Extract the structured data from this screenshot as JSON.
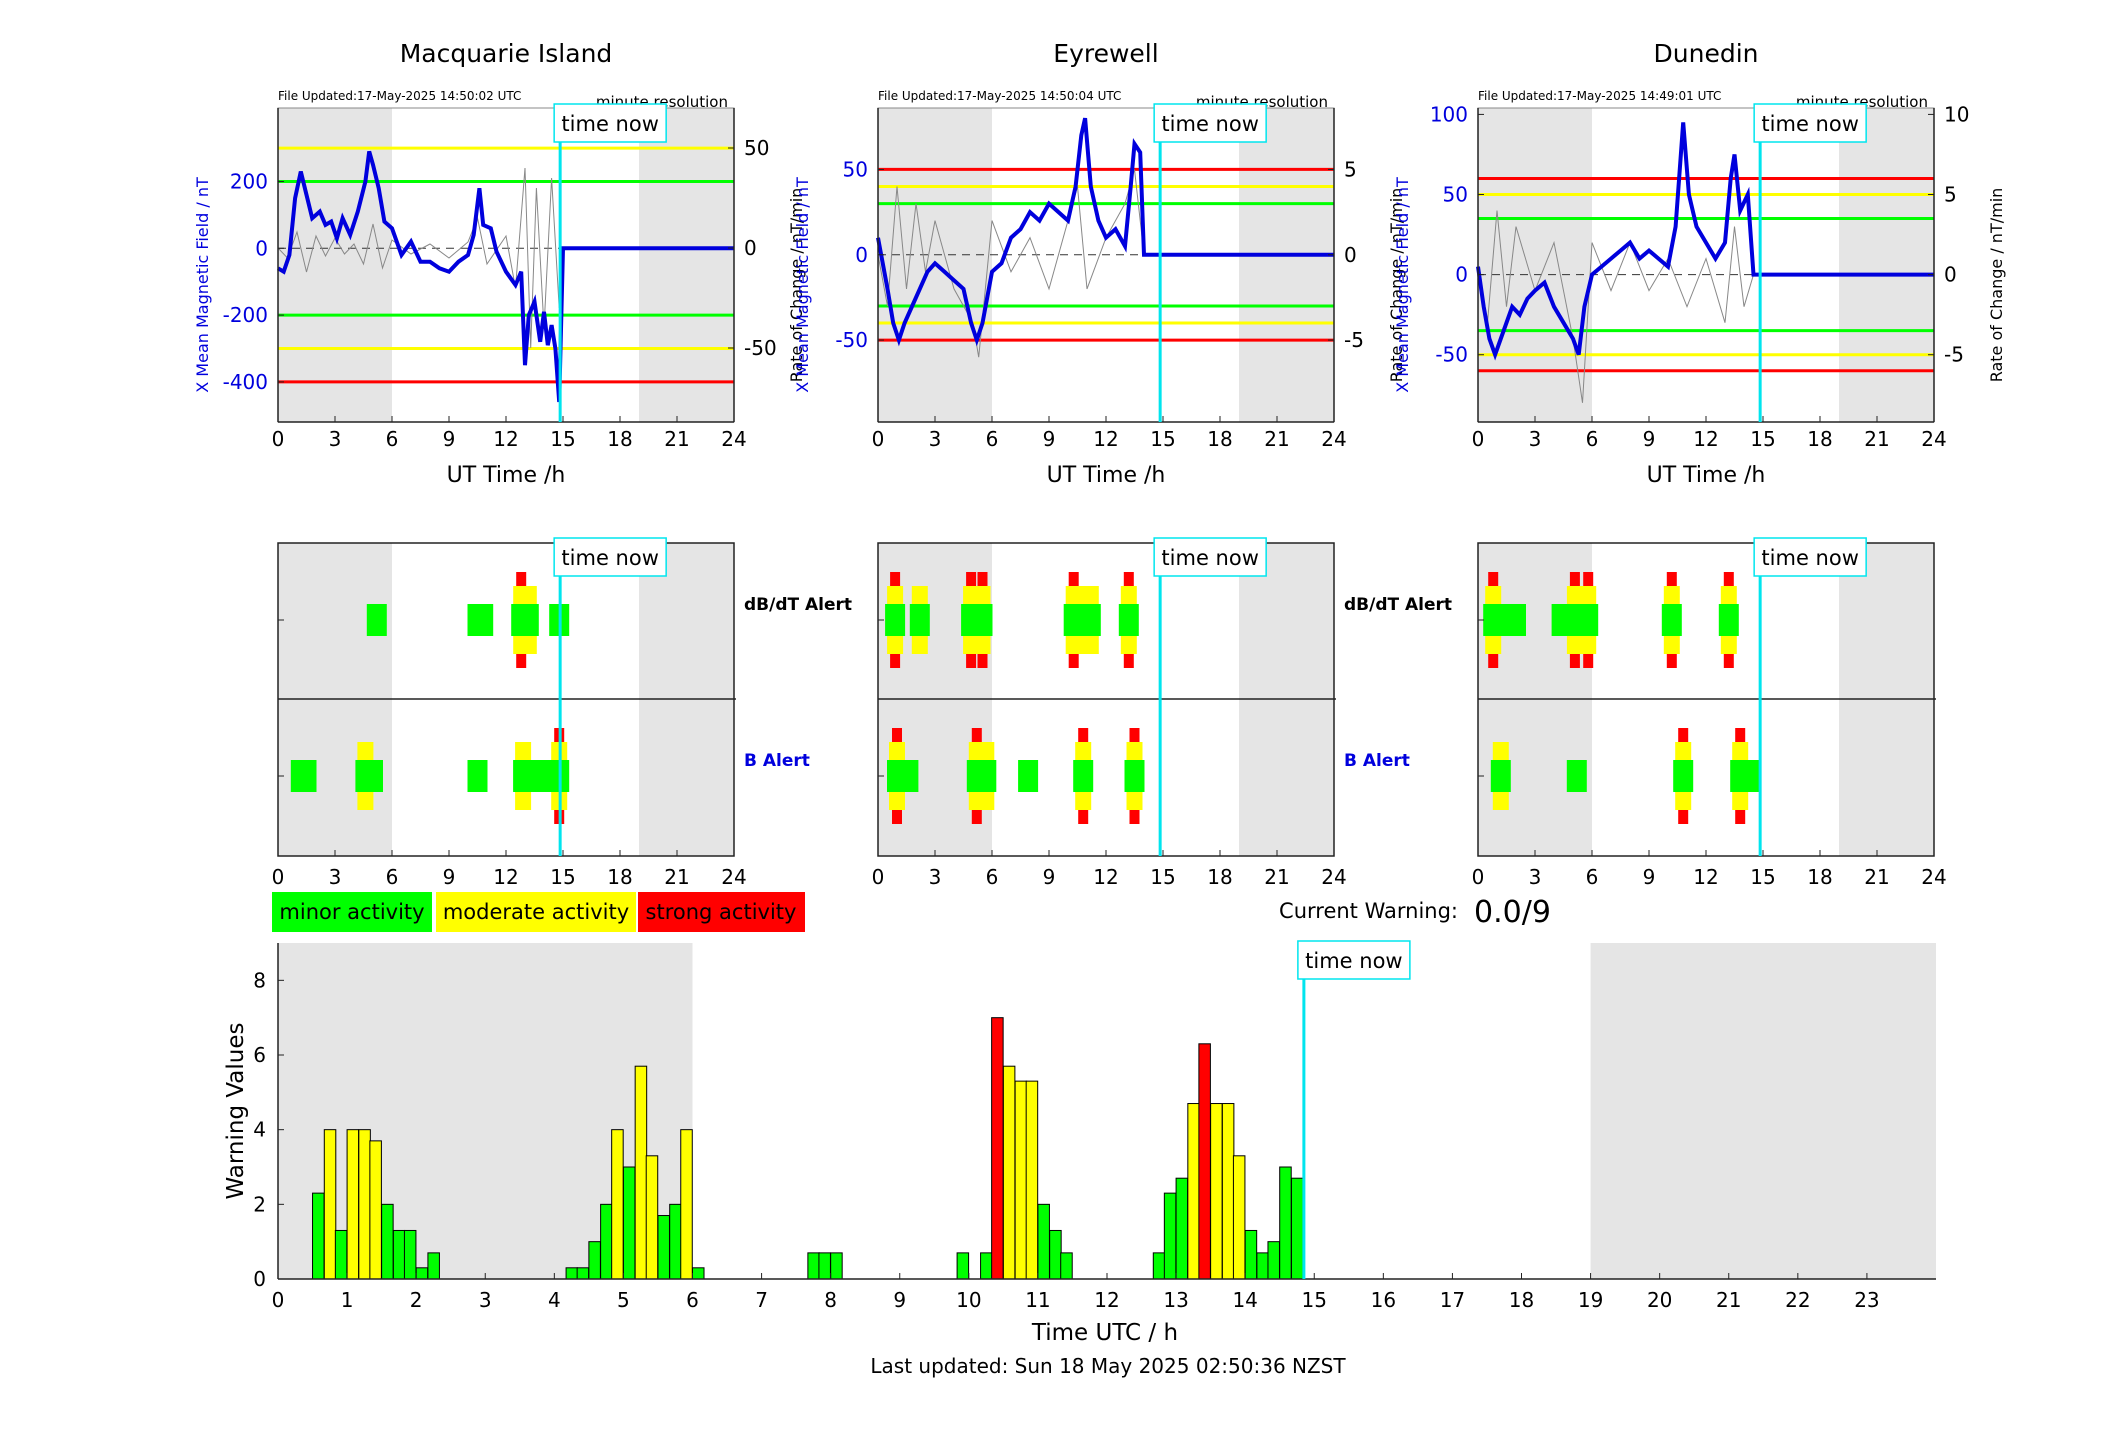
{
  "stations": [
    {
      "name": "Macquarie Island",
      "file_updated": "File Updated:17-May-2025 14:50:02 UTC",
      "resolution": "minute resolution",
      "left_ylabel": "X Mean Magnetic Field / nT",
      "right_ylabel": "Rate of Change / nT/min",
      "left_ylim": [
        -520,
        420
      ],
      "right_ylim": [
        -87,
        70
      ],
      "left_ticks": [
        -400,
        -200,
        0,
        200
      ],
      "right_ticks": [
        -50,
        0,
        50
      ],
      "thresholds": {
        "red": [
          -400
        ],
        "yellow": [
          300,
          -300
        ],
        "green": [
          200,
          -200
        ]
      },
      "field_series": [
        [
          0,
          -60
        ],
        [
          0.3,
          -70
        ],
        [
          0.6,
          -20
        ],
        [
          0.9,
          150
        ],
        [
          1.2,
          230
        ],
        [
          1.5,
          160
        ],
        [
          1.8,
          90
        ],
        [
          2.2,
          110
        ],
        [
          2.5,
          70
        ],
        [
          2.8,
          80
        ],
        [
          3.1,
          30
        ],
        [
          3.4,
          90
        ],
        [
          3.8,
          40
        ],
        [
          4.2,
          110
        ],
        [
          4.6,
          200
        ],
        [
          4.8,
          290
        ],
        [
          5.0,
          250
        ],
        [
          5.3,
          180
        ],
        [
          5.6,
          80
        ],
        [
          6.0,
          60
        ],
        [
          6.5,
          -20
        ],
        [
          7.0,
          20
        ],
        [
          7.5,
          -40
        ],
        [
          8.0,
          -40
        ],
        [
          8.5,
          -60
        ],
        [
          9.0,
          -70
        ],
        [
          9.5,
          -40
        ],
        [
          10.0,
          -20
        ],
        [
          10.3,
          40
        ],
        [
          10.6,
          180
        ],
        [
          10.8,
          70
        ],
        [
          11.2,
          60
        ],
        [
          11.5,
          -10
        ],
        [
          12.0,
          -70
        ],
        [
          12.5,
          -110
        ],
        [
          12.8,
          -70
        ],
        [
          13.0,
          -350
        ],
        [
          13.2,
          -200
        ],
        [
          13.5,
          -160
        ],
        [
          13.8,
          -280
        ],
        [
          14.0,
          -190
        ],
        [
          14.2,
          -290
        ],
        [
          14.4,
          -230
        ],
        [
          14.6,
          -300
        ],
        [
          14.8,
          -460
        ],
        [
          15.0,
          0
        ],
        [
          24.0,
          0
        ]
      ],
      "rate_series": [
        [
          0,
          0
        ],
        [
          0.5,
          -5
        ],
        [
          1,
          8
        ],
        [
          1.5,
          -12
        ],
        [
          2,
          6
        ],
        [
          2.5,
          -4
        ],
        [
          3,
          5
        ],
        [
          3.5,
          -3
        ],
        [
          4,
          2
        ],
        [
          4.5,
          -8
        ],
        [
          5,
          12
        ],
        [
          5.5,
          -10
        ],
        [
          6,
          4
        ],
        [
          7,
          -3
        ],
        [
          8,
          2
        ],
        [
          9,
          -5
        ],
        [
          10,
          3
        ],
        [
          10.5,
          15
        ],
        [
          11,
          -8
        ],
        [
          12,
          6
        ],
        [
          12.5,
          -20
        ],
        [
          13,
          40
        ],
        [
          13.3,
          -50
        ],
        [
          13.6,
          30
        ],
        [
          14,
          -40
        ],
        [
          14.4,
          35
        ],
        [
          14.8,
          -30
        ],
        [
          15,
          0
        ]
      ],
      "alerts": {
        "dbdt": [
          {
            "t": 5.2,
            "level": 1
          },
          {
            "t": 10.5,
            "level": 1
          },
          {
            "t": 10.8,
            "level": 1
          },
          {
            "t": 12.8,
            "level": 3
          },
          {
            "t": 13.2,
            "level": 2
          },
          {
            "t": 14.8,
            "level": 1
          }
        ],
        "b": [
          {
            "t": 1.2,
            "level": 1
          },
          {
            "t": 1.5,
            "level": 1
          },
          {
            "t": 4.6,
            "level": 2
          },
          {
            "t": 5.0,
            "level": 1
          },
          {
            "t": 10.5,
            "level": 1
          },
          {
            "t": 12.9,
            "level": 2
          },
          {
            "t": 13.5,
            "level": 1
          },
          {
            "t": 14.0,
            "level": 1
          },
          {
            "t": 14.6,
            "level": 1
          },
          {
            "t": 14.8,
            "level": 3
          }
        ]
      }
    },
    {
      "name": "Eyrewell",
      "file_updated": "File Updated:17-May-2025 14:50:04 UTC",
      "resolution": "minute resolution",
      "left_ylabel": "X Mean Magnetic Field / nT",
      "right_ylabel": "Rate of Change / nT/min",
      "left_ylim": [
        -98,
        86
      ],
      "right_ylim": [
        -9.8,
        8.6
      ],
      "left_ticks": [
        -50,
        0,
        50
      ],
      "right_ticks": [
        -5,
        0,
        5
      ],
      "thresholds": {
        "red": [
          50,
          -50
        ],
        "yellow": [
          40,
          -40
        ],
        "green": [
          30,
          -30
        ]
      },
      "field_series": [
        [
          0,
          10
        ],
        [
          0.5,
          -20
        ],
        [
          0.8,
          -40
        ],
        [
          1.1,
          -50
        ],
        [
          1.4,
          -40
        ],
        [
          1.8,
          -30
        ],
        [
          2.2,
          -20
        ],
        [
          2.6,
          -10
        ],
        [
          3.0,
          -5
        ],
        [
          3.5,
          -10
        ],
        [
          4.0,
          -15
        ],
        [
          4.5,
          -20
        ],
        [
          4.9,
          -40
        ],
        [
          5.2,
          -50
        ],
        [
          5.5,
          -40
        ],
        [
          6.0,
          -10
        ],
        [
          6.5,
          -5
        ],
        [
          7.0,
          10
        ],
        [
          7.5,
          15
        ],
        [
          8.0,
          25
        ],
        [
          8.5,
          20
        ],
        [
          9.0,
          30
        ],
        [
          9.5,
          25
        ],
        [
          10.0,
          20
        ],
        [
          10.4,
          40
        ],
        [
          10.7,
          70
        ],
        [
          10.9,
          80
        ],
        [
          11.2,
          40
        ],
        [
          11.6,
          20
        ],
        [
          12.0,
          10
        ],
        [
          12.5,
          15
        ],
        [
          13.0,
          5
        ],
        [
          13.3,
          40
        ],
        [
          13.5,
          65
        ],
        [
          13.8,
          60
        ],
        [
          14.0,
          0
        ],
        [
          24,
          0
        ]
      ],
      "rate_series": [
        [
          0,
          0
        ],
        [
          0.5,
          -3
        ],
        [
          1,
          4
        ],
        [
          1.5,
          -2
        ],
        [
          2,
          3
        ],
        [
          2.5,
          -1
        ],
        [
          3,
          2
        ],
        [
          4,
          -2
        ],
        [
          5,
          -4
        ],
        [
          5.3,
          -6
        ],
        [
          6,
          2
        ],
        [
          7,
          -1
        ],
        [
          8,
          1
        ],
        [
          9,
          -2
        ],
        [
          10,
          2
        ],
        [
          10.5,
          4
        ],
        [
          11,
          -2
        ],
        [
          12,
          1
        ],
        [
          13,
          3
        ],
        [
          13.5,
          5
        ],
        [
          14,
          0
        ]
      ],
      "alerts": {
        "dbdt": [
          {
            "t": 0.9,
            "level": 3
          },
          {
            "t": 2.2,
            "level": 2
          },
          {
            "t": 4.9,
            "level": 3
          },
          {
            "t": 5.5,
            "level": 3
          },
          {
            "t": 10.3,
            "level": 3
          },
          {
            "t": 10.8,
            "level": 2
          },
          {
            "t": 11.2,
            "level": 2
          },
          {
            "t": 13.2,
            "level": 3
          }
        ],
        "b": [
          {
            "t": 1.0,
            "level": 3
          },
          {
            "t": 1.6,
            "level": 1
          },
          {
            "t": 5.2,
            "level": 3
          },
          {
            "t": 5.7,
            "level": 2
          },
          {
            "t": 7.9,
            "level": 1
          },
          {
            "t": 10.8,
            "level": 3
          },
          {
            "t": 13.5,
            "level": 3
          }
        ]
      }
    },
    {
      "name": "Dunedin",
      "file_updated": "File Updated:17-May-2025 14:49:01 UTC",
      "resolution": "minute resolution",
      "left_ylabel": "X Mean Magnetic Field / nT",
      "right_ylabel": "Rate of Change / nT/min",
      "left_ylim": [
        -92,
        104
      ],
      "right_ylim": [
        -9.2,
        10.4
      ],
      "left_ticks": [
        -50,
        0,
        50,
        100
      ],
      "right_ticks": [
        -5,
        0,
        5,
        10
      ],
      "thresholds": {
        "red": [
          60,
          -60
        ],
        "yellow": [
          50,
          -50
        ],
        "green": [
          35,
          -35
        ]
      },
      "field_series": [
        [
          0,
          5
        ],
        [
          0.3,
          -20
        ],
        [
          0.6,
          -40
        ],
        [
          0.9,
          -50
        ],
        [
          1.2,
          -40
        ],
        [
          1.5,
          -30
        ],
        [
          1.8,
          -20
        ],
        [
          2.2,
          -25
        ],
        [
          2.6,
          -15
        ],
        [
          3.0,
          -10
        ],
        [
          3.5,
          -5
        ],
        [
          4.0,
          -20
        ],
        [
          4.5,
          -30
        ],
        [
          5.0,
          -40
        ],
        [
          5.3,
          -50
        ],
        [
          5.6,
          -20
        ],
        [
          6.0,
          0
        ],
        [
          6.5,
          5
        ],
        [
          7.0,
          10
        ],
        [
          7.5,
          15
        ],
        [
          8.0,
          20
        ],
        [
          8.5,
          10
        ],
        [
          9.0,
          15
        ],
        [
          9.5,
          10
        ],
        [
          10.0,
          5
        ],
        [
          10.4,
          30
        ],
        [
          10.8,
          95
        ],
        [
          11.1,
          50
        ],
        [
          11.5,
          30
        ],
        [
          12.0,
          20
        ],
        [
          12.5,
          10
        ],
        [
          13.0,
          20
        ],
        [
          13.3,
          60
        ],
        [
          13.5,
          75
        ],
        [
          13.8,
          40
        ],
        [
          14.2,
          50
        ],
        [
          14.5,
          0
        ],
        [
          24,
          0
        ]
      ],
      "rate_series": [
        [
          0,
          0
        ],
        [
          0.5,
          -3
        ],
        [
          1,
          4
        ],
        [
          1.5,
          -2
        ],
        [
          2,
          3
        ],
        [
          3,
          -1
        ],
        [
          4,
          2
        ],
        [
          5,
          -4
        ],
        [
          5.5,
          -8
        ],
        [
          6,
          2
        ],
        [
          7,
          -1
        ],
        [
          8,
          2
        ],
        [
          9,
          -1
        ],
        [
          10,
          1
        ],
        [
          11,
          -2
        ],
        [
          12,
          1
        ],
        [
          13,
          -3
        ],
        [
          13.5,
          3
        ],
        [
          14,
          -2
        ],
        [
          14.5,
          0
        ]
      ],
      "alerts": {
        "dbdt": [
          {
            "t": 0.8,
            "level": 3
          },
          {
            "t": 1.3,
            "level": 1
          },
          {
            "t": 2.0,
            "level": 1
          },
          {
            "t": 4.4,
            "level": 1
          },
          {
            "t": 5.1,
            "level": 3
          },
          {
            "t": 5.5,
            "level": 1
          },
          {
            "t": 5.8,
            "level": 3
          },
          {
            "t": 10.2,
            "level": 3
          },
          {
            "t": 13.2,
            "level": 3
          }
        ],
        "b": [
          {
            "t": 1.2,
            "level": 2
          },
          {
            "t": 5.2,
            "level": 1
          },
          {
            "t": 10.8,
            "level": 3
          },
          {
            "t": 13.8,
            "level": 3
          },
          {
            "t": 14.3,
            "level": 1
          }
        ]
      }
    }
  ],
  "time_now_label": "time now",
  "time_now_ut": 14.85,
  "x_axis_label": "UT Time /h",
  "x_ticks": [
    0,
    3,
    6,
    9,
    12,
    15,
    18,
    21,
    24
  ],
  "dbdt_label": "dB/dT Alert",
  "b_label": "B Alert",
  "legend": [
    {
      "label": "minor activity",
      "color": "#00ff00"
    },
    {
      "label": "moderate activity",
      "color": "#ffff00"
    },
    {
      "label": "strong activity",
      "color": "#ff0000"
    }
  ],
  "current_warning_label": "Current Warning:",
  "current_warning_value": "0.0/9",
  "chart_data": {
    "type": "bar",
    "title": "",
    "xlabel": "Time UTC / h",
    "ylabel": "Warning Values",
    "xlim": [
      0,
      24
    ],
    "ylim": [
      0,
      9
    ],
    "x_ticks": [
      0,
      1,
      2,
      3,
      4,
      5,
      6,
      7,
      8,
      9,
      10,
      11,
      12,
      13,
      14,
      15,
      16,
      17,
      18,
      19,
      20,
      21,
      22,
      23
    ],
    "y_ticks": [
      0,
      2,
      4,
      6,
      8
    ],
    "bars": [
      {
        "t": 0.5,
        "v": 2.3,
        "c": "g"
      },
      {
        "t": 0.67,
        "v": 4,
        "c": "y"
      },
      {
        "t": 0.83,
        "v": 1.3,
        "c": "g"
      },
      {
        "t": 1.0,
        "v": 4,
        "c": "y"
      },
      {
        "t": 1.17,
        "v": 4,
        "c": "y"
      },
      {
        "t": 1.33,
        "v": 3.7,
        "c": "y"
      },
      {
        "t": 1.5,
        "v": 2,
        "c": "g"
      },
      {
        "t": 1.67,
        "v": 1.3,
        "c": "g"
      },
      {
        "t": 1.83,
        "v": 1.3,
        "c": "g"
      },
      {
        "t": 2.0,
        "v": 0.3,
        "c": "g"
      },
      {
        "t": 2.17,
        "v": 0.7,
        "c": "g"
      },
      {
        "t": 4.17,
        "v": 0.3,
        "c": "g"
      },
      {
        "t": 4.33,
        "v": 0.3,
        "c": "g"
      },
      {
        "t": 4.5,
        "v": 1,
        "c": "g"
      },
      {
        "t": 4.67,
        "v": 2,
        "c": "g"
      },
      {
        "t": 4.83,
        "v": 4,
        "c": "y"
      },
      {
        "t": 5.0,
        "v": 3,
        "c": "g"
      },
      {
        "t": 5.17,
        "v": 5.7,
        "c": "y"
      },
      {
        "t": 5.33,
        "v": 3.3,
        "c": "y"
      },
      {
        "t": 5.5,
        "v": 1.7,
        "c": "g"
      },
      {
        "t": 5.67,
        "v": 2,
        "c": "g"
      },
      {
        "t": 5.83,
        "v": 4,
        "c": "y"
      },
      {
        "t": 6.0,
        "v": 0.3,
        "c": "g"
      },
      {
        "t": 7.67,
        "v": 0.7,
        "c": "g"
      },
      {
        "t": 7.83,
        "v": 0.7,
        "c": "g"
      },
      {
        "t": 8.0,
        "v": 0.7,
        "c": "g"
      },
      {
        "t": 9.83,
        "v": 0.7,
        "c": "g"
      },
      {
        "t": 10.17,
        "v": 0.7,
        "c": "g"
      },
      {
        "t": 10.33,
        "v": 7,
        "c": "r"
      },
      {
        "t": 10.5,
        "v": 5.7,
        "c": "y"
      },
      {
        "t": 10.67,
        "v": 5.3,
        "c": "y"
      },
      {
        "t": 10.83,
        "v": 5.3,
        "c": "y"
      },
      {
        "t": 11.0,
        "v": 2,
        "c": "g"
      },
      {
        "t": 11.17,
        "v": 1.3,
        "c": "g"
      },
      {
        "t": 11.33,
        "v": 0.7,
        "c": "g"
      },
      {
        "t": 12.67,
        "v": 0.7,
        "c": "g"
      },
      {
        "t": 12.83,
        "v": 2.3,
        "c": "g"
      },
      {
        "t": 13.0,
        "v": 2.7,
        "c": "g"
      },
      {
        "t": 13.17,
        "v": 4.7,
        "c": "y"
      },
      {
        "t": 13.33,
        "v": 6.3,
        "c": "r"
      },
      {
        "t": 13.5,
        "v": 4.7,
        "c": "y"
      },
      {
        "t": 13.67,
        "v": 4.7,
        "c": "y"
      },
      {
        "t": 13.83,
        "v": 3.3,
        "c": "y"
      },
      {
        "t": 14.0,
        "v": 1.3,
        "c": "g"
      },
      {
        "t": 14.17,
        "v": 0.7,
        "c": "g"
      },
      {
        "t": 14.33,
        "v": 1,
        "c": "g"
      },
      {
        "t": 14.5,
        "v": 3,
        "c": "g"
      },
      {
        "t": 14.67,
        "v": 2.7,
        "c": "g"
      }
    ],
    "shaded_ranges": [
      [
        0,
        6
      ],
      [
        19,
        24
      ]
    ]
  },
  "last_updated": "Last updated: Sun 18 May 2025 02:50:36 NZST",
  "colors": {
    "green": "#00ff00",
    "yellow": "#ffff00",
    "red": "#ff0000",
    "cyan": "#00e5ee",
    "blue": "#0000dd",
    "shade": "#e5e5e5"
  }
}
